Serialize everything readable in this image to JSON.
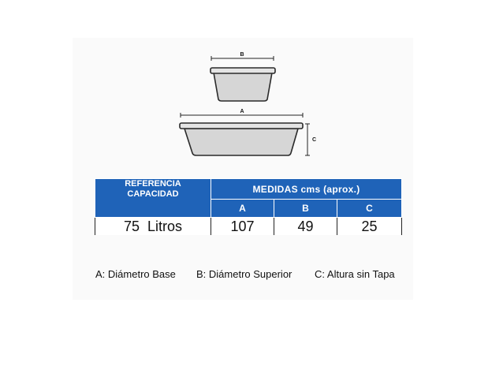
{
  "diagram": {
    "label_b": "B",
    "label_a": "A",
    "label_c": "C"
  },
  "table": {
    "header_ref_line1": "REFERENCIA",
    "header_ref_line2": "CAPACIDAD",
    "header_medidas": "MEDIDAS cms (aprox.)",
    "columns": [
      "A",
      "B",
      "C"
    ],
    "rows": [
      {
        "capacidad": "75  Litros",
        "a": "107",
        "b": "49",
        "c": "25"
      }
    ]
  },
  "legend": {
    "a": "A: Diámetro Base",
    "b": "B: Diámetro Superior",
    "c": "C: Altura sin Tapa"
  },
  "colors": {
    "header_blue": "#1f63b8",
    "basin_fill": "#d6d6d6",
    "basin_stroke": "#2a2a2a"
  }
}
